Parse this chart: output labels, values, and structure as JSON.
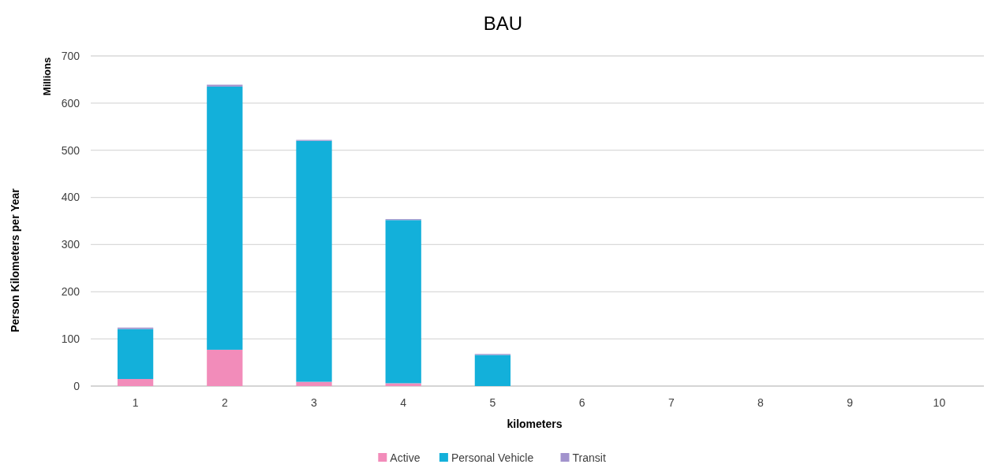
{
  "chart_data": {
    "type": "bar",
    "title": "BAU",
    "xlabel": "kilometers",
    "ylabel": "Person Kilometers per Year",
    "annotations": [
      "Millions"
    ],
    "categories": [
      "1",
      "2",
      "3",
      "4",
      "5",
      "6",
      "7",
      "8",
      "9",
      "10"
    ],
    "stacked": true,
    "ylim": [
      0,
      700
    ],
    "yticks": [
      0,
      100,
      200,
      300,
      400,
      500,
      600,
      700
    ],
    "grid": "y",
    "legend": "bottom",
    "series": [
      {
        "name": "Active",
        "color": "#f28cba",
        "values": [
          15,
          77,
          9,
          6,
          0,
          0,
          0,
          0,
          0,
          0
        ]
      },
      {
        "name": "Personal Vehicle",
        "color": "#13b0da",
        "values": [
          106,
          558,
          511,
          346,
          66,
          0,
          0,
          0,
          0,
          0
        ]
      },
      {
        "name": "Transit",
        "color": "#a293cd",
        "values": [
          3,
          4,
          2,
          2,
          2,
          0,
          0,
          0,
          0,
          0
        ]
      }
    ]
  }
}
